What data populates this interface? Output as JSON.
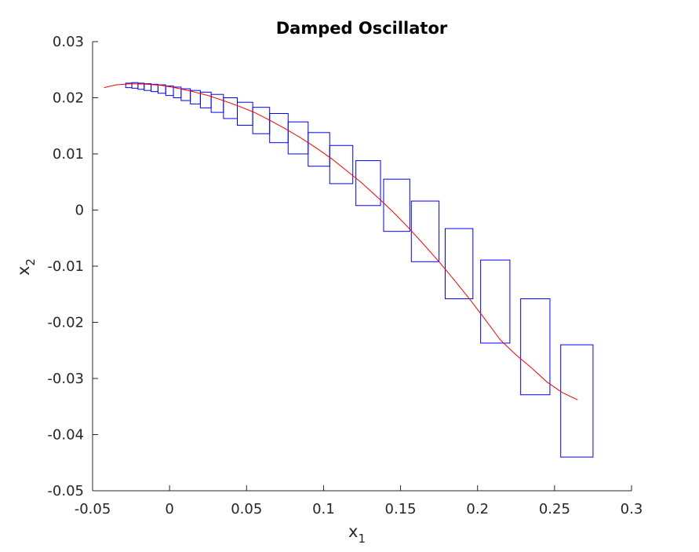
{
  "chart_data": {
    "type": "line",
    "title": "Damped Oscillator",
    "xlabel": {
      "base": "x",
      "sub": "1"
    },
    "ylabel": {
      "base": "x",
      "sub": "2"
    },
    "xlim": [
      -0.05,
      0.3
    ],
    "ylim": [
      -0.05,
      0.03
    ],
    "xticks": [
      -0.05,
      0,
      0.05,
      0.1,
      0.15,
      0.2,
      0.25,
      0.3
    ],
    "xtick_labels": [
      "-0.05",
      "0",
      "0.05",
      "0.1",
      "0.15",
      "0.2",
      "0.25",
      "0.3"
    ],
    "yticks": [
      -0.05,
      -0.04,
      -0.03,
      -0.02,
      -0.01,
      0,
      0.01,
      0.02,
      0.03
    ],
    "ytick_labels": [
      "-0.05",
      "-0.04",
      "-0.03",
      "-0.02",
      "-0.01",
      "0",
      "0.01",
      "0.02",
      "0.03"
    ],
    "grid": false,
    "colors": {
      "trajectory": "#ff0000",
      "boxes": "#0000ff",
      "axis": "#262626"
    },
    "boxes": [
      {
        "x": [
          -0.0285,
          -0.0245
        ],
        "y": [
          0.0218,
          0.0226
        ]
      },
      {
        "x": [
          -0.0245,
          -0.0205
        ],
        "y": [
          0.0217,
          0.0227
        ]
      },
      {
        "x": [
          -0.0205,
          -0.0165
        ],
        "y": [
          0.0215,
          0.0226
        ]
      },
      {
        "x": [
          -0.0165,
          -0.012
        ],
        "y": [
          0.0213,
          0.0225
        ]
      },
      {
        "x": [
          -0.012,
          -0.0075
        ],
        "y": [
          0.0211,
          0.0224
        ]
      },
      {
        "x": [
          -0.0075,
          -0.0025
        ],
        "y": [
          0.0208,
          0.0223
        ]
      },
      {
        "x": [
          -0.0025,
          0.0025
        ],
        "y": [
          0.0204,
          0.0221
        ]
      },
      {
        "x": [
          0.0025,
          0.0075
        ],
        "y": [
          0.02,
          0.0219
        ]
      },
      {
        "x": [
          0.0075,
          0.0135
        ],
        "y": [
          0.0195,
          0.0216
        ]
      },
      {
        "x": [
          0.0135,
          0.02
        ],
        "y": [
          0.0189,
          0.0213
        ]
      },
      {
        "x": [
          0.02,
          0.027
        ],
        "y": [
          0.0182,
          0.021
        ]
      },
      {
        "x": [
          0.027,
          0.035
        ],
        "y": [
          0.0174,
          0.0206
        ]
      },
      {
        "x": [
          0.035,
          0.044
        ],
        "y": [
          0.0163,
          0.02
        ]
      },
      {
        "x": [
          0.044,
          0.054
        ],
        "y": [
          0.0151,
          0.0192
        ]
      },
      {
        "x": [
          0.054,
          0.065
        ],
        "y": [
          0.0136,
          0.0183
        ]
      },
      {
        "x": [
          0.065,
          0.077
        ],
        "y": [
          0.012,
          0.0172
        ]
      },
      {
        "x": [
          0.077,
          0.09
        ],
        "y": [
          0.01,
          0.0157
        ]
      },
      {
        "x": [
          0.09,
          0.104
        ],
        "y": [
          0.0078,
          0.0138
        ]
      },
      {
        "x": [
          0.104,
          0.119
        ],
        "y": [
          0.0047,
          0.0115
        ]
      },
      {
        "x": [
          0.121,
          0.137
        ],
        "y": [
          0.0008,
          0.0088
        ]
      },
      {
        "x": [
          0.139,
          0.156
        ],
        "y": [
          -0.0038,
          0.0055
        ]
      },
      {
        "x": [
          0.157,
          0.175
        ],
        "y": [
          -0.0092,
          0.0016
        ]
      },
      {
        "x": [
          0.179,
          0.197
        ],
        "y": [
          -0.0158,
          -0.0033
        ]
      },
      {
        "x": [
          0.202,
          0.221
        ],
        "y": [
          -0.0237,
          -0.0089
        ]
      },
      {
        "x": [
          0.228,
          0.247
        ],
        "y": [
          -0.0329,
          -0.0158
        ]
      },
      {
        "x": [
          0.254,
          0.275
        ],
        "y": [
          -0.044,
          -0.024
        ]
      }
    ],
    "trajectory": {
      "x": [
        -0.0425,
        -0.035,
        -0.025,
        -0.015,
        -0.005,
        0.005,
        0.015,
        0.025,
        0.035,
        0.045,
        0.055,
        0.065,
        0.075,
        0.085,
        0.095,
        0.105,
        0.115,
        0.125,
        0.135,
        0.145,
        0.155,
        0.165,
        0.175,
        0.185,
        0.195,
        0.205,
        0.215,
        0.225,
        0.235,
        0.245,
        0.255,
        0.265
      ],
      "y": [
        0.0218,
        0.0223,
        0.0225,
        0.0224,
        0.0222,
        0.0217,
        0.0211,
        0.0204,
        0.0195,
        0.0185,
        0.0174,
        0.016,
        0.0145,
        0.0129,
        0.0111,
        0.0092,
        0.007,
        0.0048,
        0.0023,
        -0.0003,
        -0.0031,
        -0.0061,
        -0.0092,
        -0.0125,
        -0.0159,
        -0.0195,
        -0.0232,
        -0.0258,
        -0.0281,
        -0.0306,
        -0.0325,
        -0.0338
      ]
    }
  }
}
